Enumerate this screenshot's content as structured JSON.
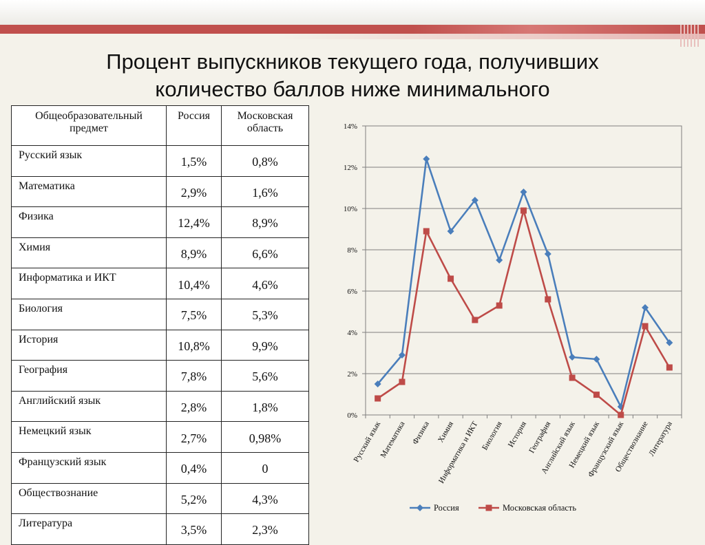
{
  "title": {
    "line1": "Процент выпускников текущего года, получивших",
    "line2": "количество баллов ниже минимального"
  },
  "table": {
    "headers": [
      "Общеобразовательный предмет",
      "Россия",
      "Московская область"
    ],
    "rows": [
      {
        "subject": "Русский язык",
        "russia": "1,5%",
        "moscow": "0,8%"
      },
      {
        "subject": "Математика",
        "russia": "2,9%",
        "moscow": "1,6%"
      },
      {
        "subject": "Физика",
        "russia": "12,4%",
        "moscow": "8,9%"
      },
      {
        "subject": "Химия",
        "russia": "8,9%",
        "moscow": "6,6%"
      },
      {
        "subject": "Информатика и ИКТ",
        "russia": "10,4%",
        "moscow": "4,6%"
      },
      {
        "subject": "Биология",
        "russia": "7,5%",
        "moscow": "5,3%"
      },
      {
        "subject": "История",
        "russia": "10,8%",
        "moscow": "9,9%"
      },
      {
        "subject": "География",
        "russia": "7,8%",
        "moscow": "5,6%"
      },
      {
        "subject": "Английский язык",
        "russia": "2,8%",
        "moscow": "1,8%"
      },
      {
        "subject": "Немецкий язык",
        "russia": "2,7%",
        "moscow": "0,98%"
      },
      {
        "subject": "Французский язык",
        "russia": "0,4%",
        "moscow": "0"
      },
      {
        "subject": "Обществознание",
        "russia": "5,2%",
        "moscow": "4,3%"
      },
      {
        "subject": "Литература",
        "russia": "3,5%",
        "moscow": "2,3%"
      }
    ]
  },
  "chart_data": {
    "type": "line",
    "categories": [
      "Русский язык",
      "Математика",
      "Физика",
      "Химия",
      "Информатика и ИКТ",
      "Биология",
      "История",
      "География",
      "Английский язык",
      "Немецкий язык",
      "Французский язык",
      "Обществознание",
      "Литература"
    ],
    "series": [
      {
        "name": "Россия",
        "values": [
          1.5,
          2.9,
          12.4,
          8.9,
          10.4,
          7.5,
          10.8,
          7.8,
          2.8,
          2.7,
          0.4,
          5.2,
          3.5
        ],
        "color": "#4a7ebb",
        "marker": "diamond"
      },
      {
        "name": "Московская область",
        "values": [
          0.8,
          1.6,
          8.9,
          6.6,
          4.6,
          5.3,
          9.9,
          5.6,
          1.8,
          0.98,
          0,
          4.3,
          2.3
        ],
        "color": "#be4b48",
        "marker": "square"
      }
    ],
    "y_ticks": [
      "0%",
      "2%",
      "4%",
      "6%",
      "8%",
      "10%",
      "12%",
      "14%"
    ],
    "ylim": [
      0,
      14
    ],
    "grid": true,
    "legend_position": "bottom"
  }
}
